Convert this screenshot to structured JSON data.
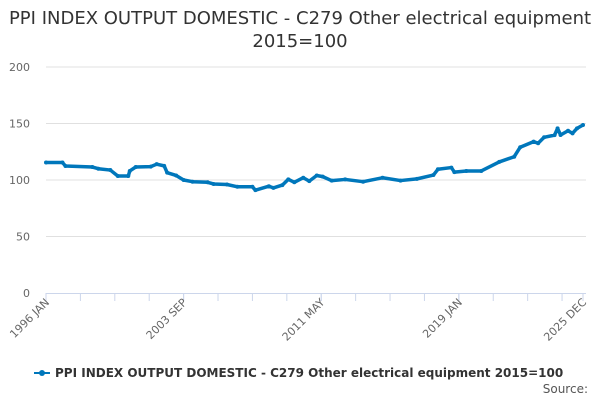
{
  "chart_data": {
    "type": "line",
    "title": "PPI INDEX OUTPUT DOMESTIC - C279 Other electrical equipment 2015=100",
    "xlabel": "",
    "ylabel": "",
    "ylim": [
      0,
      200
    ],
    "yticks": [
      0,
      50,
      100,
      150,
      200
    ],
    "xlim": [
      "1996-01",
      "2025-12"
    ],
    "xtick_labels": [
      {
        "date": "1996-01",
        "label": "1996 JAN"
      },
      {
        "date": "2003-09",
        "label": "2003 SEP"
      },
      {
        "date": "2011-05",
        "label": "2011 MAY"
      },
      {
        "date": "2019-01",
        "label": "2019 JAN"
      },
      {
        "date": "2025-12",
        "label": "2025 DEC"
      }
    ],
    "grid": true,
    "legend_position": "bottom",
    "series": [
      {
        "name": "PPI INDEX OUTPUT DOMESTIC - C279 Other electrical equipment 2015=100",
        "color": "#0077bb",
        "x": [
          "1996-01",
          "1996-12",
          "1997-02",
          "1998-08",
          "1998-12",
          "1999-08",
          "2000-01",
          "2000-08",
          "2000-09",
          "2001-01",
          "2001-11",
          "2002-03",
          "2002-08",
          "2002-10",
          "2003-04",
          "2003-09",
          "2004-03",
          "2005-01",
          "2005-05",
          "2006-02",
          "2006-09",
          "2007-07",
          "2007-09",
          "2008-06",
          "2008-09",
          "2009-03",
          "2009-07",
          "2009-11",
          "2010-05",
          "2010-09",
          "2011-02",
          "2011-06",
          "2011-12",
          "2012-09",
          "2013-09",
          "2014-10",
          "2015-10",
          "2016-09",
          "2017-08",
          "2017-11",
          "2018-08",
          "2018-10",
          "2019-06",
          "2020-04",
          "2021-04",
          "2022-02",
          "2022-06",
          "2023-03",
          "2023-06",
          "2023-10",
          "2024-05",
          "2024-07",
          "2024-09",
          "2025-02",
          "2025-05",
          "2025-08",
          "2025-12"
        ],
        "y": [
          115.5,
          115.5,
          112.4,
          111.5,
          110,
          108.8,
          103.5,
          103.5,
          108,
          111.5,
          111.8,
          114,
          112.5,
          106.5,
          104,
          100,
          98.5,
          98,
          96.5,
          96,
          94,
          94,
          91,
          94.5,
          93,
          95.5,
          100.6,
          98,
          102,
          99,
          104,
          103,
          99.4,
          100.5,
          98.5,
          102,
          99.5,
          101,
          104.4,
          109.5,
          111,
          107,
          108,
          108,
          116,
          120.6,
          129,
          134,
          132.5,
          137.8,
          139.7,
          145.7,
          139.8,
          143.6,
          141.3,
          145.7,
          148.7
        ]
      }
    ]
  },
  "footer": {
    "source_label": "Source:"
  }
}
